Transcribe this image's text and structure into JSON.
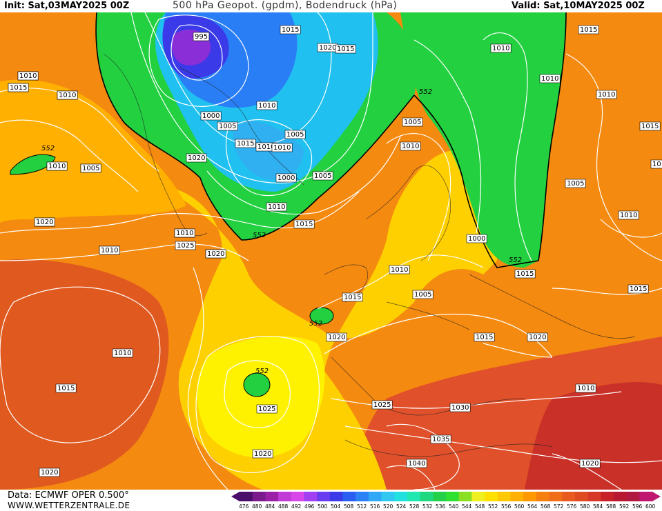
{
  "header": {
    "init": "Init: Sat,03MAY2025 00Z",
    "title": "500 hPa Geopot. (gpdm), Bodendruck (hPa)",
    "valid": "Valid: Sat,10MAY2025 00Z"
  },
  "footer": {
    "data_source": "Data: ECMWF OPER 0.500°",
    "website": "WWW.WETTERZENTRALE.DE"
  },
  "legend": {
    "ticks": [
      "476",
      "480",
      "484",
      "488",
      "492",
      "496",
      "500",
      "504",
      "508",
      "512",
      "516",
      "520",
      "524",
      "528",
      "532",
      "536",
      "540",
      "544",
      "548",
      "552",
      "556",
      "560",
      "564",
      "568",
      "572",
      "576",
      "580",
      "584",
      "588",
      "592",
      "596",
      "600"
    ],
    "colors": [
      "#4b0f6b",
      "#7a1a8c",
      "#9c1fa8",
      "#c23bd6",
      "#d845e8",
      "#a040f0",
      "#6a3cf0",
      "#3a3ae8",
      "#2a5ef0",
      "#2a82f5",
      "#30a8f8",
      "#30c8f0",
      "#20e0e0",
      "#20e8b0",
      "#20d880",
      "#22d04a",
      "#30e030",
      "#8ae020",
      "#f0f020",
      "#ffe000",
      "#ffc800",
      "#ffb000",
      "#ff9800",
      "#f58010",
      "#f06e18",
      "#e85a20",
      "#e04a20",
      "#d83828",
      "#c82028",
      "#b81830",
      "#b01840",
      "#c01870"
    ]
  },
  "map": {
    "isobar_labels": [
      "1020",
      "1015",
      "1020",
      "1015",
      "1020",
      "1010",
      "1025",
      "1020",
      "1025",
      "1025",
      "1020",
      "1015",
      "1010",
      "1005",
      "1000",
      "995",
      "1000",
      "1010",
      "1005",
      "1015",
      "1010",
      "1005",
      "1000",
      "1005",
      "1010",
      "1015",
      "1020",
      "1025",
      "1020",
      "1015",
      "1010",
      "1020",
      "1025",
      "1030",
      "1035",
      "1040",
      "1015",
      "1020",
      "1015",
      "1010",
      "1020",
      "1015",
      "1010",
      "1005",
      "1015",
      "1010",
      "1010",
      "1010",
      "1015",
      "1015",
      "1020",
      "1015",
      "1010",
      "1010",
      "1005",
      "1015",
      "1010",
      "1010",
      "1005",
      "1010",
      "1015",
      "1020",
      "1010",
      "1020",
      "1010"
    ],
    "height_552_label": "552"
  }
}
